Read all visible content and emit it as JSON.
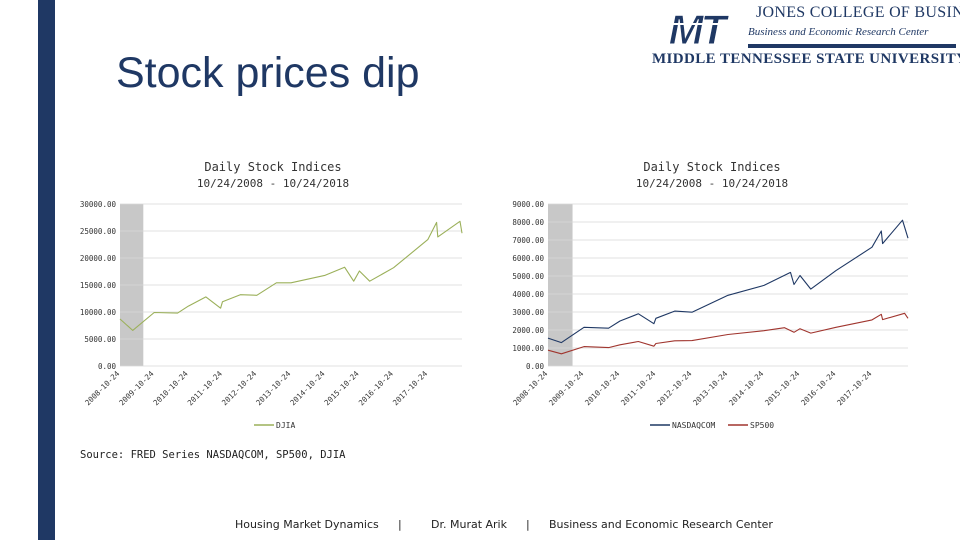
{
  "slide": {
    "title": "Stock prices dip",
    "source": "Source: FRED Series NASDAQCOM, SP500, DJIA"
  },
  "logo": {
    "line1": "JONES COLLEGE OF BUSINESS",
    "line2": "Business and Economic Research Center",
    "line3": "MIDDLE TENNESSEE STATE UNIVERSITY",
    "mark": "MT"
  },
  "footer": {
    "left": "Housing Market Dynamics",
    "sep1": "|",
    "middle": "Dr. Murat Arik",
    "sep2": "|",
    "right": "Business and Economic Research Center"
  },
  "colors": {
    "accent": "#1f3864",
    "djia": "#9bb05a",
    "nasdaq": "#1f3864",
    "sp500": "#a0352e",
    "recession": "#c8c8c8"
  },
  "chart_data": [
    {
      "type": "line",
      "title": "Daily Stock Indices",
      "subtitle": "10/24/2008 - 10/24/2018",
      "x_ticks": [
        "2008-10-24",
        "2009-10-24",
        "2010-10-24",
        "2011-10-24",
        "2012-10-24",
        "2013-10-24",
        "2014-10-24",
        "2015-10-24",
        "2016-10-24",
        "2017-10-24"
      ],
      "ylim": [
        0,
        30000
      ],
      "y_ticks": [
        "0.00",
        "5000.00",
        "10000.00",
        "15000.00",
        "20000.00",
        "25000.00",
        "30000.00"
      ],
      "shaded_range": [
        "2008-10-24",
        "2009-06-30"
      ],
      "grid": true,
      "legend": "bottom",
      "series": [
        {
          "name": "DJIA",
          "x": [
            "2008-10-24",
            "2009-03-09",
            "2009-10-24",
            "2010-07-01",
            "2010-10-24",
            "2011-04-29",
            "2011-10-03",
            "2011-10-24",
            "2012-05-01",
            "2012-10-24",
            "2013-05-21",
            "2013-10-24",
            "2014-10-24",
            "2015-05-19",
            "2015-08-25",
            "2015-10-24",
            "2016-02-11",
            "2016-10-24",
            "2017-10-24",
            "2018-01-26",
            "2018-02-08",
            "2018-10-03",
            "2018-10-24"
          ],
          "values": [
            8700,
            6600,
            9900,
            9800,
            11100,
            12800,
            10700,
            11900,
            13200,
            13100,
            15400,
            15400,
            16800,
            18300,
            15700,
            17600,
            15700,
            18200,
            23400,
            26600,
            23900,
            26800,
            24600
          ]
        }
      ]
    },
    {
      "type": "line",
      "title": "Daily Stock Indices",
      "subtitle": "10/24/2008 - 10/24/2018",
      "x_ticks": [
        "2008-10-24",
        "2009-10-24",
        "2010-10-24",
        "2011-10-24",
        "2012-10-24",
        "2013-10-24",
        "2014-10-24",
        "2015-10-24",
        "2016-10-24",
        "2017-10-24"
      ],
      "ylim": [
        0,
        9000
      ],
      "y_ticks": [
        "0.00",
        "1000.00",
        "2000.00",
        "3000.00",
        "4000.00",
        "5000.00",
        "6000.00",
        "7000.00",
        "8000.00",
        "9000.00"
      ],
      "shaded_range": [
        "2008-10-24",
        "2009-06-30"
      ],
      "grid": true,
      "legend": "bottom",
      "series": [
        {
          "name": "NASDAQCOM",
          "x": [
            "2008-10-24",
            "2009-03-09",
            "2009-10-24",
            "2010-07-01",
            "2010-10-24",
            "2011-04-29",
            "2011-10-03",
            "2011-10-24",
            "2012-05-01",
            "2012-10-24",
            "2013-10-24",
            "2014-10-24",
            "2015-07-20",
            "2015-08-25",
            "2015-10-24",
            "2016-02-11",
            "2016-10-24",
            "2017-10-24",
            "2018-01-26",
            "2018-02-08",
            "2018-08-29",
            "2018-10-24"
          ],
          "values": [
            1550,
            1300,
            2150,
            2100,
            2500,
            2900,
            2350,
            2650,
            3050,
            2990,
            3930,
            4480,
            5200,
            4530,
            5030,
            4270,
            5300,
            6600,
            7500,
            6800,
            8100,
            7100
          ]
        },
        {
          "name": "SP500",
          "x": [
            "2008-10-24",
            "2009-03-09",
            "2009-10-24",
            "2010-07-01",
            "2010-10-24",
            "2011-04-29",
            "2011-10-03",
            "2011-10-24",
            "2012-05-01",
            "2012-10-24",
            "2013-10-24",
            "2014-10-24",
            "2015-05-21",
            "2015-08-25",
            "2015-10-24",
            "2016-02-11",
            "2016-10-24",
            "2017-10-24",
            "2018-01-26",
            "2018-02-08",
            "2018-09-20",
            "2018-10-24"
          ],
          "values": [
            880,
            680,
            1080,
            1020,
            1180,
            1360,
            1100,
            1250,
            1400,
            1410,
            1750,
            1960,
            2130,
            1870,
            2070,
            1830,
            2150,
            2560,
            2870,
            2580,
            2930,
            2650
          ]
        }
      ]
    }
  ]
}
